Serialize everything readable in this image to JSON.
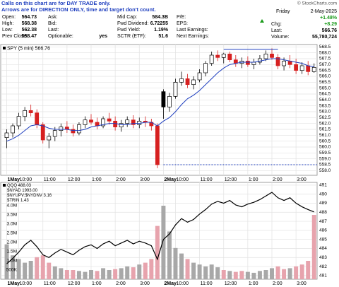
{
  "header": {
    "notes": [
      "Calls on this chart are for DAY TRADE only.",
      "Arrows are for DIRECTION ONLY, time and target don't count."
    ],
    "credit": "© StockCharts.com",
    "rows": [
      [
        {
          "label": "Open:",
          "value": "564.73"
        },
        {
          "label": "Ask:"
        },
        {
          "label": "Mid Cap:",
          "value": "584.3B"
        },
        {
          "label": "P/E:"
        }
      ],
      [
        {
          "label": "High:",
          "value": "568.38"
        },
        {
          "label": "Bid:"
        },
        {
          "label": "Fwd Dividend:",
          "value": "6.72255"
        },
        {
          "label": "EPS:"
        }
      ],
      [
        {
          "label": "Low:",
          "value": "562.38"
        },
        {
          "label": "Last:"
        },
        {
          "label": "Fwd Yield:",
          "value": "1.19%"
        },
        {
          "label": "Last Earnings:"
        }
      ],
      [
        {
          "label": "Prev Close:",
          "value": "558.47"
        },
        {
          "label": "Optionable:",
          "value": "yes"
        },
        {
          "label": "SCTR (ETF):",
          "value": "51.6"
        },
        {
          "label": "Next Earnings:"
        }
      ]
    ],
    "summary": {
      "day": "Friday",
      "date": "2-May-2025",
      "change_pct": "+1.48%",
      "rows": [
        {
          "label": "Chg:",
          "value": "+8.29"
        },
        {
          "label": "Last:",
          "value": "566.76"
        },
        {
          "label": "Volume:",
          "value": "55,780,724"
        }
      ]
    }
  },
  "chart_data": [
    {
      "type": "candlestick",
      "name": "SPY (5 min) 566.76",
      "color": "#000000",
      "down_color": "#d62020",
      "x": [
        0,
        1,
        2,
        3,
        4,
        5,
        6,
        7,
        8,
        9,
        10,
        11,
        12,
        13,
        14,
        15,
        16,
        17,
        18,
        19,
        20,
        21,
        22,
        23,
        24,
        25,
        26,
        27,
        28,
        29,
        30,
        31,
        32,
        33,
        34,
        35,
        36,
        37,
        38,
        39,
        40,
        41,
        42,
        43,
        44,
        45,
        46,
        47,
        48,
        49,
        50,
        51
      ],
      "open": [
        560.8,
        561.2,
        561.8,
        562.6,
        563.1,
        562.9,
        561.9,
        560.6,
        560.9,
        561.4,
        561.7,
        561.5,
        561.2,
        561.9,
        562.3,
        562.1,
        561.8,
        562.4,
        562.2,
        561.7,
        562.0,
        562.3,
        561.9,
        562.2,
        562.1,
        561.8,
        564.7,
        563.4,
        564.3,
        565.5,
        565.8,
        565.3,
        565.7,
        566.3,
        567.1,
        567.8,
        567.6,
        567.9,
        567.4,
        567.1,
        567.3,
        567.0,
        567.2,
        567.5,
        567.9,
        567.6,
        566.9,
        567.3,
        567.0,
        566.5,
        566.9,
        566.4
      ],
      "high": [
        561.5,
        562.0,
        562.9,
        563.4,
        563.6,
        563.2,
        562.1,
        561.2,
        561.7,
        562.0,
        562.2,
        561.9,
        562.1,
        562.6,
        562.8,
        562.5,
        562.6,
        562.9,
        562.6,
        562.3,
        562.6,
        562.7,
        562.5,
        562.6,
        562.4,
        562.0,
        564.9,
        564.6,
        565.8,
        566.4,
        566.2,
        566.0,
        566.6,
        567.3,
        568.1,
        568.2,
        568.0,
        568.1,
        567.8,
        567.6,
        567.7,
        567.5,
        567.8,
        568.2,
        568.38,
        567.9,
        567.6,
        567.8,
        567.5,
        567.2,
        567.3,
        567.1
      ],
      "low": [
        559.9,
        560.8,
        561.5,
        562.2,
        562.6,
        561.6,
        560.3,
        559.9,
        560.5,
        560.9,
        561.2,
        560.9,
        561.0,
        561.6,
        561.9,
        561.5,
        561.6,
        561.9,
        561.4,
        561.3,
        561.7,
        561.6,
        561.6,
        561.7,
        561.4,
        558.2,
        562.4,
        563.0,
        564.1,
        565.2,
        565.0,
        564.9,
        565.5,
        566.0,
        566.9,
        567.3,
        567.1,
        567.2,
        566.8,
        566.7,
        566.8,
        566.6,
        567.0,
        567.3,
        567.4,
        566.6,
        566.5,
        566.7,
        566.2,
        566.2,
        566.1,
        566.3
      ],
      "close": [
        561.2,
        561.8,
        562.6,
        563.1,
        562.9,
        561.9,
        560.6,
        560.9,
        561.4,
        561.7,
        561.5,
        561.2,
        561.9,
        562.3,
        562.1,
        561.8,
        562.4,
        562.2,
        561.7,
        562.0,
        562.3,
        561.9,
        562.2,
        562.1,
        561.8,
        558.5,
        563.4,
        564.3,
        565.5,
        565.8,
        565.3,
        565.7,
        566.3,
        567.1,
        567.8,
        567.6,
        567.9,
        567.4,
        567.1,
        567.3,
        567.0,
        567.2,
        567.5,
        567.9,
        567.6,
        566.9,
        567.3,
        567.0,
        566.5,
        566.9,
        566.4,
        566.76
      ],
      "overlays": [
        {
          "color": "#1f3fbf",
          "values": [
            560.5,
            560.7,
            561.0,
            561.4,
            561.8,
            561.9,
            561.8,
            561.6,
            561.5,
            561.5,
            561.5,
            561.4,
            561.4,
            561.5,
            561.7,
            561.8,
            561.9,
            562.0,
            562.0,
            561.9,
            561.9,
            562.0,
            562.0,
            562.1,
            562.1,
            561.8,
            562.2,
            562.5,
            563.0,
            563.6,
            564.1,
            564.4,
            564.8,
            565.3,
            565.8,
            566.3,
            566.7,
            567.0,
            567.1,
            567.2,
            567.2,
            567.2,
            567.3,
            567.4,
            567.5,
            567.5,
            567.4,
            567.3,
            567.2,
            567.1,
            566.9,
            566.8
          ]
        }
      ],
      "lines": [
        {
          "y": 568.3,
          "x": [
            36,
            45
          ],
          "color": "#1f3fbf"
        },
        {
          "y": 558.5,
          "x": [
            26,
            51.5
          ],
          "color": "#1f3fbf",
          "dashed": true
        }
      ],
      "xlim": [
        -1,
        51.5
      ],
      "xticks": [
        {
          "value": 0,
          "label": "1May"
        },
        {
          "value": 2,
          "label": "10:00"
        },
        {
          "value": 6,
          "label": "11:00"
        },
        {
          "value": 10,
          "label": "12:00"
        },
        {
          "value": 14,
          "label": "1:00"
        },
        {
          "value": 18,
          "label": "2:00"
        },
        {
          "value": 22,
          "label": "3:00"
        },
        {
          "value": 26,
          "label": "2May"
        },
        {
          "value": 28,
          "label": "10:00"
        },
        {
          "value": 32,
          "label": "11:00"
        },
        {
          "value": 36,
          "label": "12:00"
        },
        {
          "value": 40,
          "label": "1:00"
        },
        {
          "value": 44,
          "label": "2:00"
        },
        {
          "value": 48,
          "label": "3:00"
        }
      ],
      "ylim": [
        557.6,
        568.7
      ],
      "yticks": [
        {
          "value": 558,
          "label": "558.0"
        },
        558.5,
        {
          "value": 559,
          "label": "559.0"
        },
        559.5,
        {
          "value": 560,
          "label": "560.0"
        },
        560.5,
        {
          "value": 561,
          "label": "561.0"
        },
        561.5,
        {
          "value": 562,
          "label": "562.0"
        },
        562.5,
        {
          "value": 563,
          "label": "563.0"
        },
        563.5,
        {
          "value": 564,
          "label": "564.0"
        },
        564.5,
        {
          "value": 565,
          "label": "565.0"
        },
        565.5,
        {
          "value": 566,
          "label": "566.0"
        },
        566.5,
        {
          "value": 567,
          "label": "567.0"
        },
        567.5,
        {
          "value": 568,
          "label": "568.0"
        },
        568.5
      ],
      "grid": true
    },
    {
      "type": "line",
      "x": [
        0,
        1,
        2,
        3,
        4,
        5,
        6,
        7,
        8,
        9,
        10,
        11,
        12,
        13,
        14,
        15,
        16,
        17,
        18,
        19,
        20,
        21,
        22,
        23,
        24,
        25,
        26,
        27,
        28,
        29,
        30,
        31,
        32,
        33,
        34,
        35,
        36,
        37,
        38,
        39,
        40,
        41,
        42,
        43,
        44,
        45,
        46,
        47,
        48,
        49,
        50,
        51
      ],
      "series": [
        {
          "name": "QQQ 488.03",
          "color": "#000000",
          "axis": "y2",
          "values": [
            482.3,
            482.9,
            483.6,
            484.4,
            484.9,
            484.2,
            483.3,
            483.0,
            483.5,
            483.9,
            483.6,
            483.3,
            483.8,
            484.2,
            484.4,
            484.0,
            484.5,
            484.8,
            484.3,
            484.6,
            484.9,
            484.5,
            484.8,
            484.6,
            484.3,
            482.8,
            485.0,
            485.6,
            486.6,
            487.3,
            486.9,
            487.2,
            487.8,
            488.3,
            488.9,
            489.2,
            489.0,
            489.3,
            488.8,
            488.6,
            488.9,
            489.1,
            489.4,
            489.8,
            490.2,
            489.6,
            489.3,
            489.6,
            489.0,
            488.6,
            488.3,
            488.03
          ]
        }
      ],
      "indicators": [
        "$NYAD 1993.00",
        "$NYUPV:$NYDNV 3.16",
        "$TRIN 1.43"
      ],
      "volume": {
        "up_color": "#a8a8a8",
        "down_color": "#e7a3ad",
        "values": [
          1900000,
          1300000,
          1100000,
          900000,
          1000000,
          1200000,
          1300000,
          900000,
          700000,
          600000,
          500000,
          500000,
          450000,
          400000,
          500000,
          450000,
          600000,
          500000,
          550000,
          600000,
          700000,
          650000,
          800000,
          900000,
          1100000,
          2900000,
          4000000,
          2600000,
          1700000,
          1400000,
          1100000,
          900000,
          800000,
          700000,
          800000,
          650000,
          500000,
          450000,
          400000,
          450000,
          400000,
          350000,
          450000,
          500000,
          600000,
          700000,
          550000,
          600000,
          700000,
          800000,
          1000000,
          3500000
        ]
      },
      "xlim": [
        -1,
        51.5
      ],
      "xticks": [
        {
          "value": 0,
          "label": "1May"
        },
        {
          "value": 2,
          "label": "10:00"
        },
        {
          "value": 6,
          "label": "11:00"
        },
        {
          "value": 10,
          "label": "12:00"
        },
        {
          "value": 14,
          "label": "1:00"
        },
        {
          "value": 18,
          "label": "2:00"
        },
        {
          "value": 22,
          "label": "3:00"
        },
        {
          "value": 26,
          "label": "2May"
        },
        {
          "value": 28,
          "label": "10:00"
        },
        {
          "value": 32,
          "label": "11:00"
        },
        {
          "value": 36,
          "label": "12:00"
        },
        {
          "value": 40,
          "label": "1:00"
        },
        {
          "value": 44,
          "label": "2:00"
        },
        {
          "value": 48,
          "label": "3:00"
        }
      ],
      "ylim": [
        0,
        5270000
      ],
      "yticks": [
        {
          "value": 500000,
          "label": "500K"
        },
        {
          "value": 1000000,
          "label": "1.0M"
        },
        {
          "value": 1500000,
          "label": "1.5M"
        },
        {
          "value": 2000000,
          "label": "2.0M"
        },
        {
          "value": 2500000,
          "label": "2.5M"
        },
        {
          "value": 3000000,
          "label": "3.0M"
        },
        {
          "value": 3500000,
          "label": "3.5M"
        },
        {
          "value": 4000000,
          "label": "4.0M"
        }
      ],
      "y2lim": [
        480.6,
        491.3
      ],
      "y2ticks": [
        481,
        482,
        483,
        484,
        485,
        486,
        487,
        488,
        489,
        490,
        491
      ],
      "grid": true
    }
  ]
}
